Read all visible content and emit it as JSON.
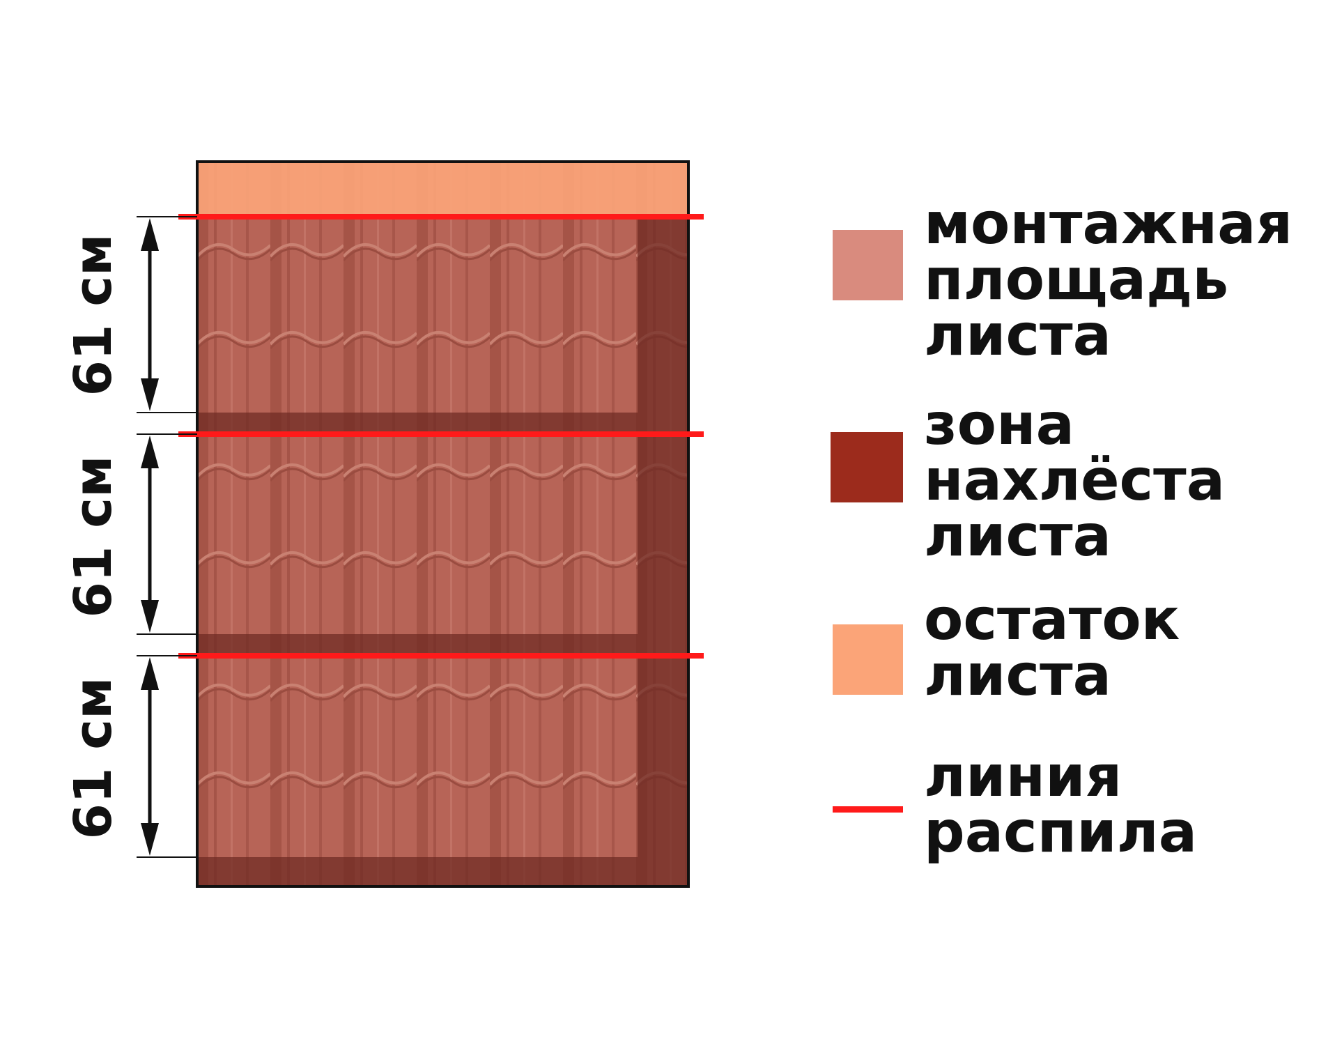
{
  "dimension_labels": [
    "61 см",
    "61 см",
    "61 см"
  ],
  "legend": [
    {
      "lines": [
        "монтажная",
        "площадь",
        "листа"
      ],
      "color": "#D98B7E",
      "swatch": "square"
    },
    {
      "lines": [
        "зона",
        "нахлёста",
        "листа"
      ],
      "color": "#9C2B1C",
      "swatch": "square"
    },
    {
      "lines": [
        "остаток",
        "листа"
      ],
      "color": "#FBA478",
      "swatch": "square"
    },
    {
      "lines": [
        "линия",
        "распила"
      ],
      "color": "#FF1A1A",
      "swatch": "line"
    }
  ]
}
